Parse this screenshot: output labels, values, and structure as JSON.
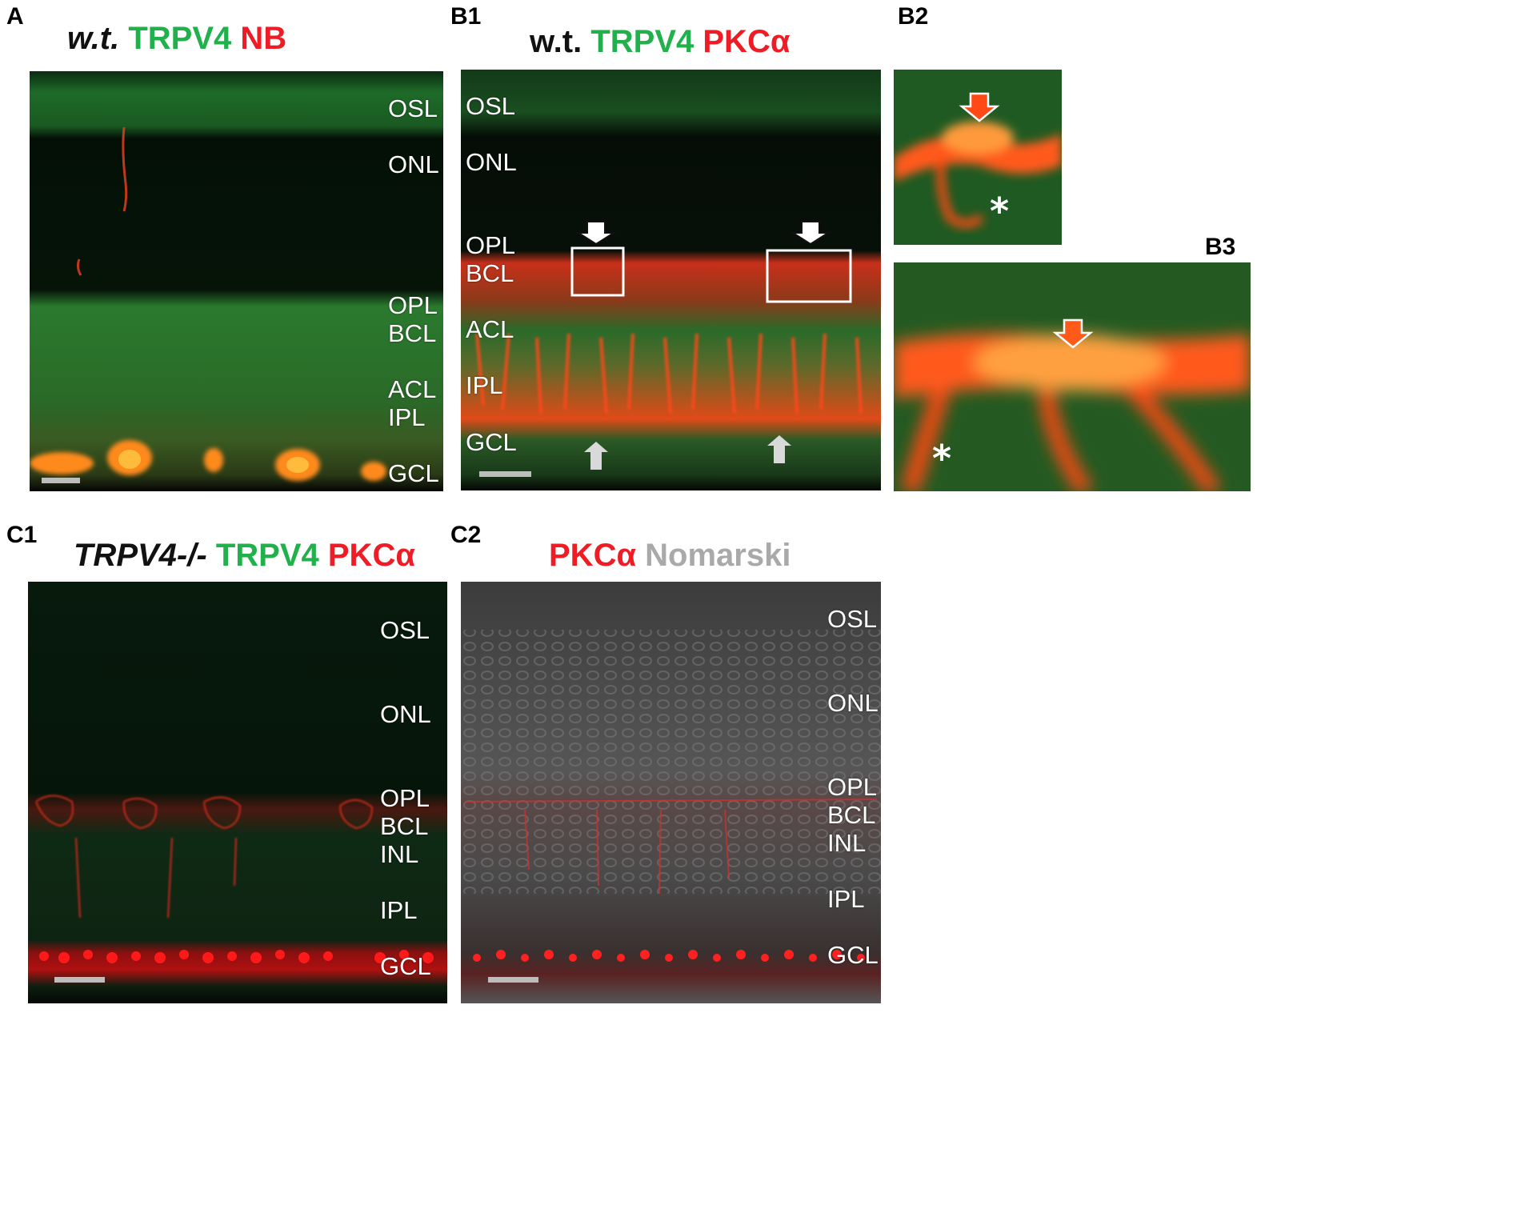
{
  "panels": {
    "A": {
      "label": "A",
      "title": {
        "genotype": "w.t.",
        "green": "TRPV4",
        "red": "NB"
      },
      "layers": [
        "OSL",
        "ONL",
        "OPL",
        "BCL",
        "ACL",
        "IPL",
        "GCL"
      ]
    },
    "B1": {
      "label": "B1",
      "title": {
        "genotype": "w.t.",
        "green": "TRPV4",
        "red": "PKCα"
      },
      "layers": [
        "OSL",
        "ONL",
        "OPL",
        "BCL",
        "ACL",
        "IPL",
        "GCL"
      ]
    },
    "B2": {
      "label": "B2",
      "asterisk": "*"
    },
    "B3": {
      "label": "B3",
      "asterisk": "*"
    },
    "C1": {
      "label": "C1",
      "title": {
        "genotype": "TRPV4-/-",
        "green": "TRPV4",
        "red": "PKCα"
      },
      "layers": [
        "OSL",
        "ONL",
        "OPL",
        "BCL",
        "INL",
        "IPL",
        "GCL"
      ]
    },
    "C2": {
      "label": "C2",
      "title": {
        "red": "PKCα",
        "grey": "Nomarski"
      },
      "layers": [
        "OSL",
        "ONL",
        "OPL",
        "BCL",
        "INL",
        "IPL",
        "GCL"
      ]
    }
  },
  "colors": {
    "green_channel": "#21b04b",
    "red_channel": "#ee1c24",
    "nomarski": "#a9a9a9",
    "orange_signal": "#ff6a1a"
  }
}
